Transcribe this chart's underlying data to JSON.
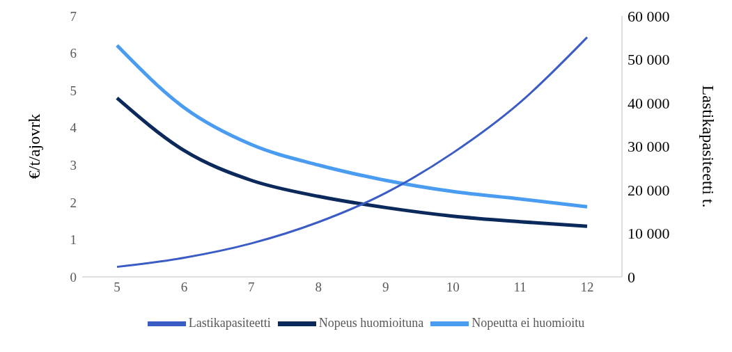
{
  "chart_data": {
    "type": "line",
    "categories": [
      "5",
      "6",
      "7",
      "8",
      "9",
      "10",
      "11",
      "12"
    ],
    "ylabel": "€/t/ajovrk",
    "y2label": "Lastikapasiteetti t.",
    "ylim": [
      0,
      7
    ],
    "yticks": [
      0,
      1,
      2,
      3,
      4,
      5,
      6,
      7
    ],
    "y2lim": [
      0,
      60000
    ],
    "y2ticks": [
      {
        "value": 0,
        "label": "0"
      },
      {
        "value": 10000,
        "label": "10 000"
      },
      {
        "value": 20000,
        "label": "20 000"
      },
      {
        "value": 30000,
        "label": "30 000"
      },
      {
        "value": 40000,
        "label": "40 000"
      },
      {
        "value": 50000,
        "label": "50 000"
      },
      {
        "value": 60000,
        "label": "60 000"
      }
    ],
    "legend": "bottom",
    "marker": "none",
    "line_style": "solid",
    "series": [
      {
        "name": "Nopeus huomioituna",
        "color": "#0b2a5b",
        "values": [
          4.8,
          3.39,
          2.59,
          2.16,
          1.86,
          1.63,
          1.48,
          1.36
        ]
      },
      {
        "name": "Nopeutta ei huomioitu",
        "color": "#4a9cf0",
        "values": [
          6.21,
          4.54,
          3.55,
          3.0,
          2.59,
          2.29,
          2.09,
          1.88
        ]
      },
      {
        "name": "Lastikapasiteetti",
        "color": "#3a5cc4",
        "axis": "y2",
        "values": [
          2300,
          4400,
          7700,
          12600,
          19300,
          28500,
          40100,
          55100
        ]
      }
    ]
  }
}
